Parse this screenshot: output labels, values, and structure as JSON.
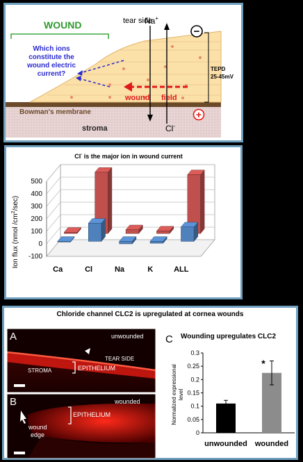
{
  "diagram": {
    "wound_label": "WOUND",
    "tear_side": "tear side",
    "na_ion": "Na",
    "na_sup": "+",
    "question": [
      "Which ions",
      "constitute the",
      "wound electric",
      "current?"
    ],
    "wound_field_1": "wound",
    "wound_field_2": "field",
    "bowman": "Bowman's membrane",
    "stroma": "stroma",
    "cl_ion": "Cl",
    "cl_sup": "-",
    "tepd_1": "TEPD",
    "tepd_2": "25-45mV",
    "minus_sign": "−",
    "plus_sign": "+"
  },
  "chart_data": {
    "type": "bar",
    "title_prefix": "Cl",
    "title_sup": "-",
    "title_rest": " is the major ion in wound current",
    "ylabel_main": "Ion flux (nmol /cm",
    "ylabel_sup": "2",
    "ylabel_end": "/sec)",
    "ylim": [
      -100,
      500
    ],
    "yticks": [
      "500",
      "400",
      "300",
      "200",
      "100",
      "0",
      "-100"
    ],
    "categories": [
      "Ca",
      "Cl",
      "Na",
      "K",
      "ALL"
    ],
    "series": [
      {
        "values": [
          -5,
          145,
          -20,
          -15,
          115
        ],
        "color": "#4f81bd"
      },
      {
        "values": [
          10,
          490,
          30,
          20,
          470
        ],
        "color": "#c0504d"
      }
    ]
  },
  "clc2": {
    "title": "Chloride channel CLC2 is upregulated at cornea wounds",
    "panel_a": {
      "letter": "A",
      "unwounded": "unwounded",
      "tear_side": "TEAR SIDE",
      "epithelium": "EPITHELIUM",
      "stroma": "STROMA"
    },
    "panel_b": {
      "letter": "B",
      "wounded": "wounded",
      "epithelium": "EPITHELIUM",
      "wound_edge_1": "wound",
      "wound_edge_2": "edge"
    },
    "panel_c": {
      "letter": "C",
      "title": "Wounding upregulates CLC2",
      "ylabel_1": "Normalized expressional",
      "ylabel_2": "level",
      "yticks": [
        "0.3",
        "0.25",
        "0.2",
        "0.15",
        "0.1",
        "0.05",
        "0"
      ],
      "significance": "*"
    }
  },
  "bar_chart_c": {
    "type": "bar",
    "categories": [
      "unwounded",
      "wounded"
    ],
    "values": [
      0.11,
      0.225
    ],
    "errors": [
      0.012,
      0.045
    ],
    "colors": [
      "#000000",
      "#8c8c8c"
    ],
    "ylim": [
      0,
      0.3
    ]
  }
}
